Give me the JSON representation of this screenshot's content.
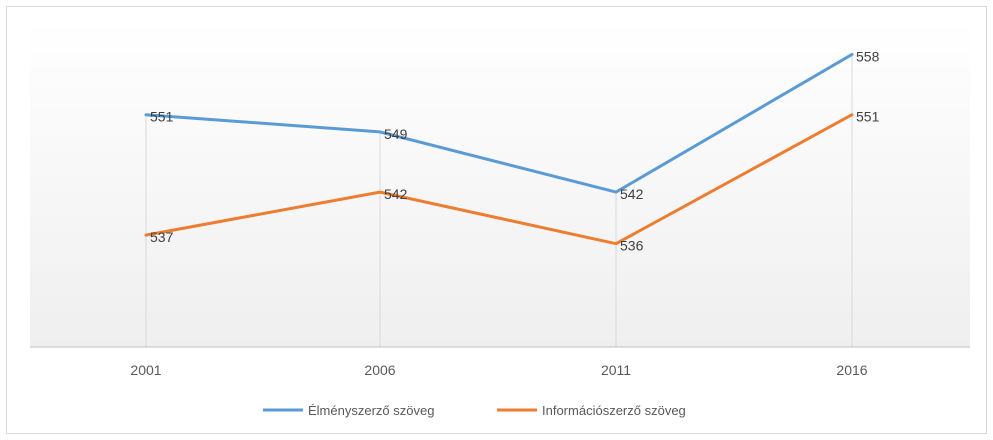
{
  "chart_data": {
    "type": "line",
    "categories": [
      "2001",
      "2006",
      "2011",
      "2016"
    ],
    "series": [
      {
        "name": "Élményszerző szöveg",
        "values": [
          551,
          549,
          542,
          558
        ],
        "color": "#5b9bd5"
      },
      {
        "name": "Információszerző szöveg",
        "values": [
          537,
          542,
          536,
          551
        ],
        "color": "#ed7d31"
      }
    ],
    "title": "",
    "xlabel": "",
    "ylabel": "",
    "ylim": [
      524,
      562
    ],
    "data_labels": true,
    "grid": "vertical drop lines at categories",
    "legend_position": "bottom"
  }
}
